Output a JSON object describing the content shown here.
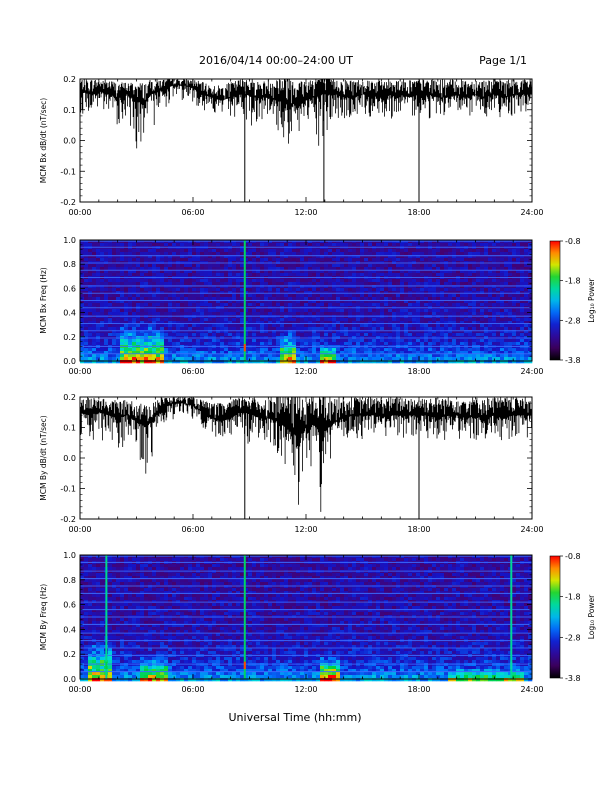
{
  "header": {
    "title": "2016/04/14   00:00–24:00 UT",
    "page": "Page 1/1"
  },
  "footer": {
    "xlabel": "Universal Time (hh:mm)"
  },
  "chart_data": [
    {
      "type": "line",
      "ylabel": "MCM Bx dB/dt (nT/sec)",
      "ylim": [
        -0.2,
        0.2
      ],
      "yticks": [
        "-0.2",
        "-0.1",
        "0.0",
        "0.1",
        "0.2"
      ],
      "xlim": [
        0,
        24
      ],
      "xticks": [
        "00:00",
        "06:00",
        "12:00",
        "18:00",
        "24:00"
      ],
      "series": [
        {
          "x": [
            0,
            0.5,
            1.0,
            1.5,
            2.0,
            2.5,
            3.0,
            3.3,
            3.5,
            3.8,
            4.2,
            4.6,
            5.0,
            5.5,
            6.0,
            6.5,
            7.0,
            7.5,
            8.0,
            8.5,
            8.8,
            9.2,
            9.6,
            10.0,
            10.5,
            10.9,
            11.3,
            11.6,
            12.0,
            12.4,
            12.8,
            13.2,
            13.6,
            14.0,
            14.5,
            15.0,
            15.5,
            16.0,
            16.5,
            17.0,
            17.5,
            18.0,
            18.5,
            19.0,
            19.5,
            20.0,
            20.5,
            21.0,
            21.5,
            22.0,
            22.5,
            23.0,
            23.5,
            24.0
          ],
          "y": [
            0.16,
            0.15,
            0.16,
            0.15,
            0.14,
            0.15,
            0.13,
            0.12,
            0.13,
            0.15,
            0.16,
            0.17,
            0.18,
            0.18,
            0.17,
            0.15,
            0.14,
            0.13,
            0.14,
            0.15,
            0.15,
            0.14,
            0.14,
            0.14,
            0.13,
            0.12,
            0.12,
            0.11,
            0.13,
            0.14,
            0.15,
            0.15,
            0.15,
            0.14,
            0.14,
            0.15,
            0.15,
            0.14,
            0.15,
            0.15,
            0.14,
            0.15,
            0.15,
            0.14,
            0.14,
            0.15,
            0.14,
            0.15,
            0.14,
            0.15,
            0.14,
            0.15,
            0.15,
            0.15
          ],
          "ymin": [
            0.09,
            0.08,
            0.09,
            0.07,
            0.05,
            0.06,
            -0.03,
            -0.08,
            -0.02,
            0.03,
            0.08,
            0.11,
            0.13,
            0.13,
            0.12,
            0.1,
            0.09,
            0.08,
            0.07,
            0.08,
            0.06,
            0.04,
            0.07,
            0.06,
            0.02,
            -0.02,
            -0.05,
            0.02,
            0.06,
            -0.04,
            -0.06,
            0.03,
            0.05,
            0.06,
            0.07,
            0.08,
            0.07,
            0.08,
            0.07,
            0.08,
            0.08,
            0.08,
            0.07,
            0.08,
            0.08,
            0.08,
            0.07,
            0.08,
            0.08,
            0.07,
            0.08,
            0.08,
            0.09,
            0.09
          ],
          "ymax": [
            0.2,
            0.2,
            0.2,
            0.2,
            0.19,
            0.19,
            0.19,
            0.19,
            0.19,
            0.2,
            0.2,
            0.2,
            0.2,
            0.2,
            0.2,
            0.19,
            0.18,
            0.18,
            0.19,
            0.2,
            0.21,
            0.2,
            0.19,
            0.2,
            0.21,
            0.22,
            0.22,
            0.2,
            0.2,
            0.21,
            0.22,
            0.21,
            0.2,
            0.2,
            0.2,
            0.2,
            0.2,
            0.2,
            0.2,
            0.2,
            0.2,
            0.2,
            0.2,
            0.2,
            0.2,
            0.2,
            0.2,
            0.2,
            0.2,
            0.2,
            0.2,
            0.2,
            0.2,
            0.2
          ]
        }
      ],
      "spikes": [
        {
          "x": 8.75,
          "y": -0.2
        },
        {
          "x": 12.95,
          "y": -0.2
        },
        {
          "x": 18.0,
          "y": -0.2
        }
      ],
      "color": "#000000"
    },
    {
      "type": "heatmap",
      "ylabel": "MCM Bx Freq (Hz)",
      "ylim": [
        0.0,
        1.0
      ],
      "yticks": [
        "0.0",
        "0.2",
        "0.4",
        "0.6",
        "0.8",
        "1.0"
      ],
      "xlim": [
        0,
        24
      ],
      "xticks": [
        "00:00",
        "06:00",
        "12:00",
        "18:00",
        "24:00"
      ],
      "colorbar": {
        "label": "Log₁₀ Power",
        "ticks": [
          "-0.8",
          "-1.8",
          "-2.8",
          "-3.8"
        ],
        "range": [
          -3.8,
          -0.8
        ]
      },
      "harmonic_lines_hz": [
        0.06,
        0.12,
        0.19,
        0.25,
        0.31,
        0.37,
        0.44,
        0.5,
        0.56,
        0.62,
        0.69,
        0.75,
        0.81,
        0.87,
        0.94,
        0.99
      ],
      "bursts": [
        {
          "x": [
            2.0,
            4.3
          ],
          "fmax": 0.35,
          "strength": 0.55
        },
        {
          "x": [
            10.5,
            11.3
          ],
          "fmax": 0.3,
          "strength": 0.5
        },
        {
          "x": [
            12.6,
            13.5
          ],
          "fmax": 0.15,
          "strength": 0.6
        }
      ],
      "spikes": [
        {
          "x": 8.75,
          "strength": 1.0
        }
      ]
    },
    {
      "type": "line",
      "ylabel": "MCM By dB/dt (nT/sec)",
      "ylim": [
        -0.2,
        0.2
      ],
      "yticks": [
        "-0.2",
        "-0.1",
        "0.0",
        "0.1",
        "0.2"
      ],
      "xlim": [
        0,
        24
      ],
      "xticks": [
        "00:00",
        "06:00",
        "12:00",
        "18:00",
        "24:00"
      ],
      "series": [
        {
          "x": [
            0,
            0.5,
            1.0,
            1.5,
            2.0,
            2.5,
            3.0,
            3.3,
            3.5,
            3.8,
            4.2,
            4.6,
            5.0,
            5.5,
            6.0,
            6.5,
            7.0,
            7.5,
            8.0,
            8.5,
            8.8,
            9.2,
            9.6,
            10.0,
            10.5,
            10.9,
            11.3,
            11.6,
            12.0,
            12.4,
            12.8,
            13.2,
            13.6,
            14.0,
            14.5,
            15.0,
            15.5,
            16.0,
            16.5,
            17.0,
            17.5,
            18.0,
            18.5,
            19.0,
            19.5,
            20.0,
            20.5,
            21.0,
            21.5,
            22.0,
            22.5,
            23.0,
            23.5,
            24.0
          ],
          "y": [
            0.15,
            0.14,
            0.15,
            0.14,
            0.13,
            0.14,
            0.12,
            0.11,
            0.1,
            0.12,
            0.15,
            0.17,
            0.18,
            0.18,
            0.17,
            0.15,
            0.13,
            0.12,
            0.13,
            0.15,
            0.15,
            0.14,
            0.13,
            0.13,
            0.12,
            0.1,
            0.08,
            0.07,
            0.1,
            0.11,
            0.08,
            0.1,
            0.12,
            0.13,
            0.14,
            0.14,
            0.14,
            0.14,
            0.14,
            0.14,
            0.14,
            0.14,
            0.14,
            0.13,
            0.14,
            0.14,
            0.13,
            0.14,
            0.13,
            0.14,
            0.13,
            0.14,
            0.14,
            0.14
          ],
          "ymin": [
            0.07,
            0.05,
            0.06,
            0.04,
            0.03,
            0.04,
            0.02,
            -0.04,
            -0.08,
            0.0,
            0.07,
            0.11,
            0.13,
            0.14,
            0.12,
            0.1,
            0.08,
            0.05,
            0.07,
            0.08,
            0.05,
            0.04,
            0.05,
            0.02,
            0.0,
            -0.06,
            -0.1,
            -0.19,
            -0.02,
            -0.04,
            -0.19,
            -0.07,
            0.03,
            0.05,
            0.06,
            0.06,
            0.06,
            0.07,
            0.06,
            0.06,
            0.07,
            0.06,
            0.06,
            0.05,
            0.06,
            0.06,
            0.05,
            0.06,
            0.05,
            0.06,
            0.05,
            0.06,
            0.06,
            0.07
          ],
          "ymax": [
            0.2,
            0.2,
            0.2,
            0.19,
            0.19,
            0.19,
            0.19,
            0.18,
            0.17,
            0.19,
            0.2,
            0.2,
            0.2,
            0.2,
            0.2,
            0.19,
            0.18,
            0.18,
            0.19,
            0.2,
            0.21,
            0.2,
            0.19,
            0.2,
            0.21,
            0.22,
            0.22,
            0.22,
            0.21,
            0.2,
            0.22,
            0.21,
            0.2,
            0.2,
            0.2,
            0.2,
            0.2,
            0.2,
            0.2,
            0.2,
            0.2,
            0.2,
            0.2,
            0.2,
            0.2,
            0.2,
            0.2,
            0.2,
            0.2,
            0.2,
            0.2,
            0.2,
            0.2,
            0.2
          ]
        }
      ],
      "spikes": [
        {
          "x": 8.75,
          "y": -0.2
        },
        {
          "x": 18.0,
          "y": -0.2
        }
      ],
      "color": "#000000"
    },
    {
      "type": "heatmap",
      "ylabel": "MCM By Freq (Hz)",
      "ylim": [
        0.0,
        1.0
      ],
      "yticks": [
        "0.0",
        "0.2",
        "0.4",
        "0.6",
        "0.8",
        "1.0"
      ],
      "xlim": [
        0,
        24
      ],
      "xticks": [
        "00:00",
        "06:00",
        "12:00",
        "18:00",
        "24:00"
      ],
      "colorbar": {
        "label": "Log₁₀ Power",
        "ticks": [
          "-0.8",
          "-1.8",
          "-2.8",
          "-3.8"
        ],
        "range": [
          -3.8,
          -0.8
        ]
      },
      "harmonic_lines_hz": [
        0.06,
        0.12,
        0.19,
        0.25,
        0.31,
        0.37,
        0.44,
        0.5,
        0.56,
        0.62,
        0.69,
        0.75,
        0.81,
        0.87,
        0.94,
        0.99
      ],
      "bursts": [
        {
          "x": [
            0.3,
            1.5
          ],
          "fmax": 0.35,
          "strength": 0.55
        },
        {
          "x": [
            3.0,
            4.6
          ],
          "fmax": 0.2,
          "strength": 0.5
        },
        {
          "x": [
            12.6,
            13.6
          ],
          "fmax": 0.2,
          "strength": 0.65
        },
        {
          "x": [
            19.5,
            23.5
          ],
          "fmax": 0.1,
          "strength": 0.35
        }
      ],
      "spikes": [
        {
          "x": 1.4,
          "strength": 0.65
        },
        {
          "x": 8.75,
          "strength": 1.0
        },
        {
          "x": 22.9,
          "strength": 0.55
        }
      ]
    }
  ]
}
